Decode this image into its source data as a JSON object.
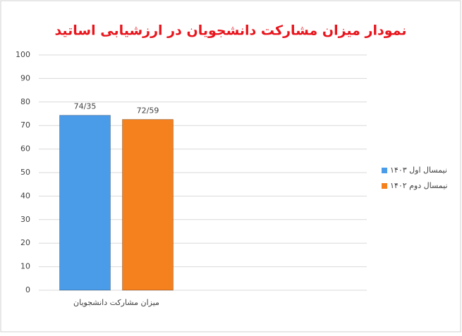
{
  "chart_data": {
    "type": "bar",
    "title": "نمودار میزان مشارکت دانشجویان در ارزشیابی اساتید",
    "categories": [
      "میزان مشارکت دانشجویان"
    ],
    "series": [
      {
        "name": "نیمسال اول ۱۴۰۳",
        "color": "#4a9be8",
        "values": [
          74.35
        ],
        "value_labels": [
          "74/35"
        ]
      },
      {
        "name": "نیمسال دوم ۱۴۰۲",
        "color": "#f4801e",
        "values": [
          72.59
        ],
        "value_labels": [
          "72/59"
        ]
      }
    ],
    "ylim": [
      0,
      100
    ],
    "yticks": [
      0,
      10,
      20,
      30,
      40,
      50,
      60,
      70,
      80,
      90,
      100
    ],
    "grid": true,
    "legend": "right"
  }
}
